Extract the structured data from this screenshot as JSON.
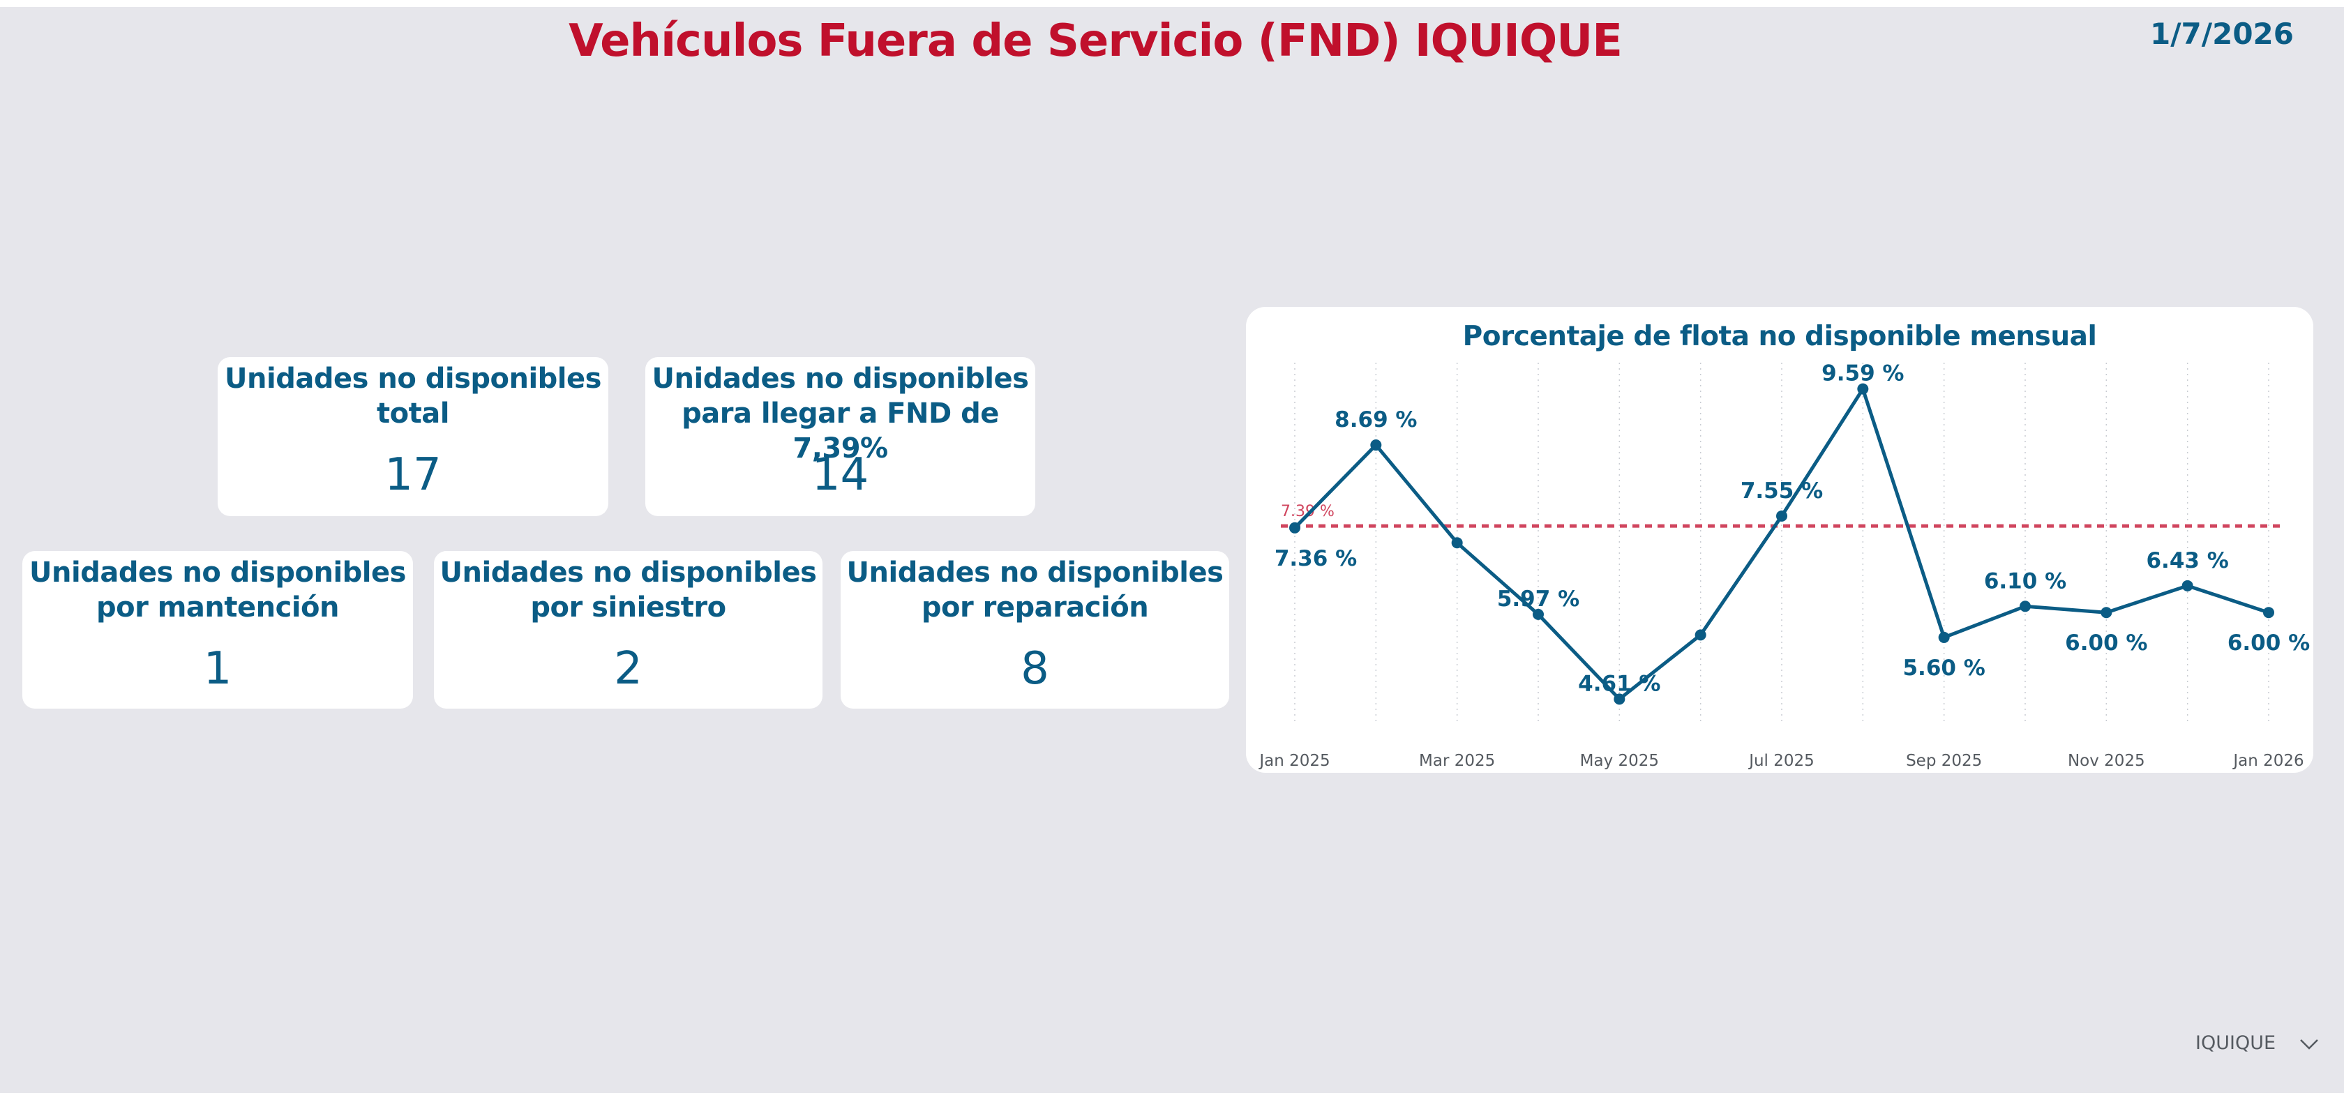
{
  "header": {
    "title": "Vehículos Fuera de Servicio (FND) IQUIQUE",
    "date": "1/7/2026"
  },
  "kpis": {
    "total": {
      "label_line1": "Unidades no disponibles",
      "label_line2": "total",
      "value": "17"
    },
    "target": {
      "label_line1": "Unidades no disponibles",
      "label_line2": "para llegar a FND de 7,39%",
      "value": "14"
    },
    "mantencion": {
      "label_line1": "Unidades no disponibles",
      "label_line2": "por mantención",
      "value": "1"
    },
    "siniestro": {
      "label_line1": "Unidades no disponibles",
      "label_line2": "por siniestro",
      "value": "2"
    },
    "reparacion": {
      "label_line1": "Unidades no disponibles",
      "label_line2": "por reparación",
      "value": "8"
    }
  },
  "chart_data": {
    "type": "line",
    "title": "Porcentaje de flota no disponible mensual",
    "x": [
      "Jan 2025",
      "Feb 2025",
      "Mar 2025",
      "Apr 2025",
      "May 2025",
      "Jun 2025",
      "Jul 2025",
      "Aug 2025",
      "Sep 2025",
      "Oct 2025",
      "Nov 2025",
      "Dec 2025",
      "Jan 2026"
    ],
    "values": [
      7.36,
      8.69,
      7.12,
      5.97,
      4.61,
      5.64,
      7.55,
      9.59,
      5.6,
      6.1,
      6.0,
      6.43,
      6.0
    ],
    "data_labels": [
      "7.36 %",
      "8.69 %",
      "",
      "5.97 %",
      "4.61 %",
      "",
      "7.55 %",
      "9.59 %",
      "5.60 %",
      "6.10 %",
      "6.00 %",
      "6.43 %",
      "6.00 %"
    ],
    "x_tick_labels": [
      "Jan 2025",
      "Mar 2025",
      "May 2025",
      "Jul 2025",
      "Sep 2025",
      "Nov 2025",
      "Jan 2026"
    ],
    "reference_line": {
      "value": 7.39,
      "label": "7.39 %"
    },
    "ylim": [
      4.3,
      9.9
    ],
    "xlabel": "",
    "ylabel": "",
    "grid": "vertical dotted",
    "colors": {
      "line": "#0b5c85",
      "reference": "#d0455e"
    }
  },
  "slicer": {
    "value": "IQUIQUE",
    "icon": "chevron-down-icon"
  }
}
